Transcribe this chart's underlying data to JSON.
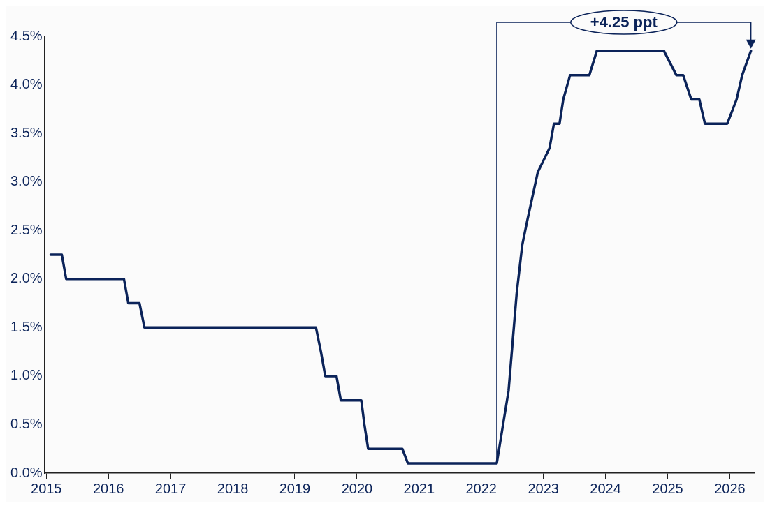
{
  "chart_data": {
    "type": "line",
    "x": [
      2015.07,
      2015.25,
      2015.32,
      2016.25,
      2016.32,
      2016.5,
      2016.58,
      2019.34,
      2019.42,
      2019.49,
      2019.67,
      2019.74,
      2020.07,
      2020.12,
      2020.18,
      2020.73,
      2020.82,
      2022.25,
      2022.44,
      2022.57,
      2022.66,
      2022.74,
      2022.91,
      2023.1,
      2023.17,
      2023.26,
      2023.32,
      2023.43,
      2023.74,
      2023.86,
      2024.94,
      2025.14,
      2025.25,
      2025.38,
      2025.51,
      2025.6,
      2025.96,
      2026.11,
      2026.2,
      2026.34
    ],
    "series": [
      {
        "color": "#0b2359",
        "values": [
          2.25,
          2.25,
          2.0,
          2.0,
          1.75,
          1.75,
          1.5,
          1.5,
          1.25,
          1.0,
          1.0,
          0.75,
          0.75,
          0.5,
          0.25,
          0.25,
          0.1,
          0.1,
          0.85,
          1.85,
          2.35,
          2.6,
          3.1,
          3.35,
          3.6,
          3.6,
          3.85,
          4.1,
          4.1,
          4.35,
          4.35,
          4.1,
          4.1,
          3.85,
          3.85,
          3.6,
          3.6,
          3.85,
          4.1,
          4.35
        ]
      }
    ],
    "xlim": [
      2014.97,
      2026.4
    ],
    "xticks": [
      2015,
      2016,
      2017,
      2018,
      2019,
      2020,
      2021,
      2022,
      2023,
      2024,
      2025,
      2026
    ],
    "ylim": [
      0,
      4.5
    ],
    "yticks": [
      {
        "value": 0,
        "label": "0.0%"
      },
      {
        "value": 0.5,
        "label": "0.5%"
      },
      {
        "value": 1,
        "label": "1.0%"
      },
      {
        "value": 1.5,
        "label": "1.5%"
      },
      {
        "value": 2,
        "label": "2.0%"
      },
      {
        "value": 2.5,
        "label": "2.5%"
      },
      {
        "value": 3,
        "label": "3.0%"
      },
      {
        "value": 3.5,
        "label": "3.5%"
      },
      {
        "value": 4,
        "label": "4.0%"
      },
      {
        "value": 4.5,
        "label": "4.5%"
      }
    ],
    "annotations": [
      "+4.25 ppt"
    ],
    "grid": false,
    "legend": false,
    "line_style": "solid"
  }
}
